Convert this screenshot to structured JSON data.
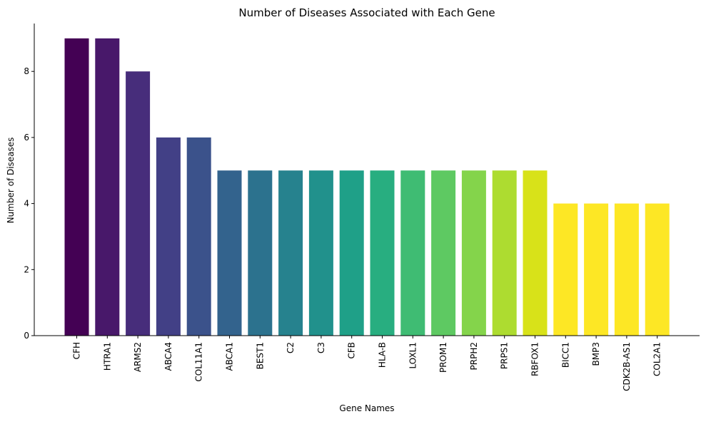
{
  "chart_data": {
    "type": "bar",
    "title": "Number of Diseases Associated with Each Gene",
    "xlabel": "Gene Names",
    "ylabel": "Number of Diseases",
    "categories": [
      "CFH",
      "HTRA1",
      "ARMS2",
      "ABCA4",
      "COL11A1",
      "ABCA1",
      "BEST1",
      "C2",
      "C3",
      "CFB",
      "HLA-B",
      "LOXL1",
      "PROM1",
      "PRPH2",
      "PRPS1",
      "RBFOX1",
      "BICC1",
      "BMP3",
      "CDK2B-AS1",
      "COL2A1"
    ],
    "values": [
      9,
      9,
      8,
      6,
      6,
      5,
      5,
      5,
      5,
      5,
      5,
      5,
      5,
      5,
      5,
      5,
      4,
      4,
      4,
      4
    ],
    "ylim": [
      0,
      9.45
    ],
    "yticks": [
      0,
      2,
      4,
      6,
      8
    ],
    "colors": [
      "#440154",
      "#48186a",
      "#472d7b",
      "#424086",
      "#3b528b",
      "#33638d",
      "#2c728e",
      "#26828e",
      "#21918c",
      "#1fa088",
      "#28ae80",
      "#3fbc73",
      "#5ec962",
      "#84d44b",
      "#addc30",
      "#d8e219",
      "#fde725",
      "#fde725",
      "#fde725",
      "#fde725"
    ],
    "grid": false,
    "legend": "none"
  }
}
